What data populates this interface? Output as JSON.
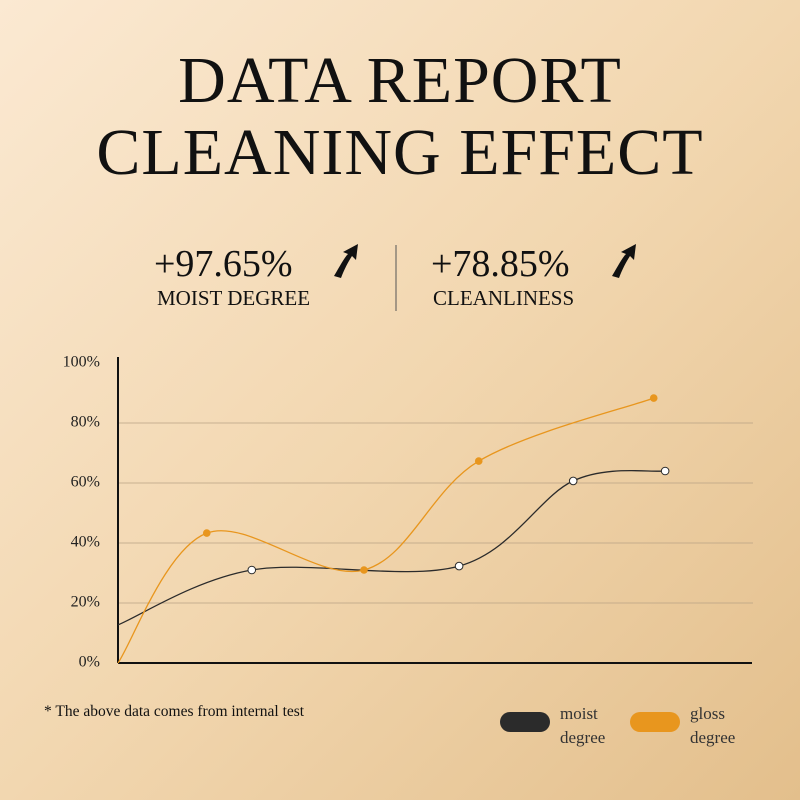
{
  "header": {
    "title_lines": [
      "DATA REPORT",
      "CLEANING EFFECT"
    ]
  },
  "stats": [
    {
      "value": "+97.65%",
      "label": "MOIST DEGREE"
    },
    {
      "value": "+78.85%",
      "label": "CLEANLINESS"
    }
  ],
  "note": "* The above data comes from internal test",
  "chart_data": {
    "type": "line",
    "xlim": [
      0,
      100
    ],
    "ylim": [
      0,
      100
    ],
    "yticks": [
      {
        "value": 0,
        "label": "0%"
      },
      {
        "value": 20,
        "label": "20%"
      },
      {
        "value": 40,
        "label": "40%"
      },
      {
        "value": 60,
        "label": "60%"
      },
      {
        "value": 80,
        "label": "80%"
      },
      {
        "value": 100,
        "label": "100%"
      }
    ],
    "grid": true,
    "series": [
      {
        "name": "moist degree",
        "color": "#2b2b2b",
        "x": [
          0,
          21.1,
          53.8,
          71.8,
          86.3
        ],
        "values": [
          12.7,
          31,
          32.3,
          60.7,
          64
        ]
      },
      {
        "name": "gloss degree",
        "color": "#e8961e",
        "x": [
          0,
          14,
          38.8,
          56.9,
          84.5
        ],
        "values": [
          0,
          43.3,
          31,
          67.3,
          88.3
        ]
      }
    ]
  }
}
